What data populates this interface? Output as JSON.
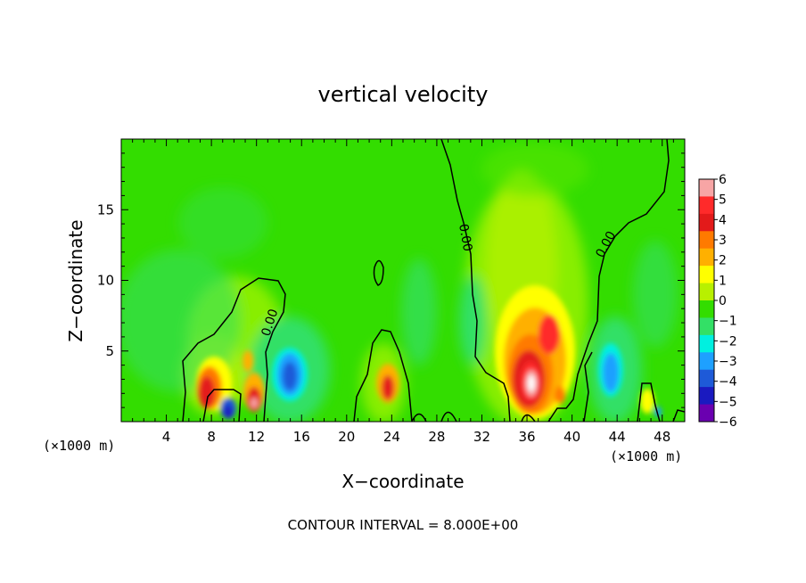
{
  "chart_data": {
    "type": "heatmap",
    "title": "vertical velocity",
    "xlabel": "X−coordinate",
    "ylabel": "Z−coordinate",
    "x_unit": "(×1000 m)",
    "footer": "CONTOUR INTERVAL = 8.000E+00",
    "xlim": [
      0,
      50
    ],
    "ylim": [
      0,
      20
    ],
    "x_ticks": [
      4,
      8,
      12,
      16,
      20,
      24,
      28,
      32,
      36,
      40,
      44,
      48
    ],
    "y_ticks": [
      5,
      10,
      15
    ],
    "contour_label": "0.00",
    "colorbar": {
      "min": -6,
      "max": 6,
      "ticks": [
        "6",
        "5",
        "4",
        "3",
        "2",
        "1",
        "0",
        "−1",
        "−2",
        "−3",
        "−4",
        "−5",
        "−6"
      ],
      "colors": [
        "#f7a5a5",
        "#ff2a2a",
        "#e31a1a",
        "#ff7a00",
        "#ffb000",
        "#ffff00",
        "#b8f000",
        "#33dd00",
        "#33e066",
        "#00f0e0",
        "#1ea0ff",
        "#1e5ad8",
        "#1a1ac0",
        "#6a00b0"
      ]
    },
    "features": [
      {
        "x": 8.0,
        "z": 2.2,
        "w": 6.5
      },
      {
        "x": 12.0,
        "z": 1.6,
        "w": 5.5
      },
      {
        "x": 11.3,
        "z": 3.5,
        "w": 2.5
      },
      {
        "x": 9.3,
        "z": 0.6,
        "w": -4.5
      },
      {
        "x": 14.8,
        "z": 3.0,
        "w": -3.5
      },
      {
        "x": 23.5,
        "z": 2.5,
        "w": 4.5
      },
      {
        "x": 36.3,
        "z": 3.2,
        "w": 6.5
      },
      {
        "x": 38.0,
        "z": 6.0,
        "w": 3.5
      },
      {
        "x": 43.5,
        "z": 3.2,
        "w": -3.0
      },
      {
        "x": 45.5,
        "z": 1.5,
        "w": 3.0
      }
    ]
  }
}
